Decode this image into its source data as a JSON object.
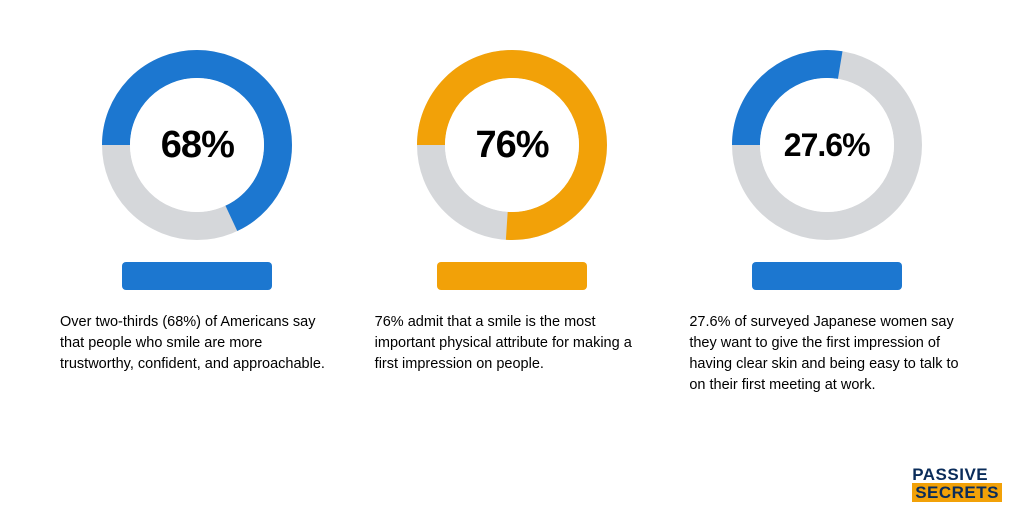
{
  "background_color": "#ffffff",
  "donut": {
    "size": 190,
    "stroke_width": 28,
    "track_color": "#d5d7da",
    "inner_fill": "#ffffff"
  },
  "stats": [
    {
      "percent": 68,
      "label": "68%",
      "label_fontsize": 38,
      "accent_color": "#1c77d0",
      "bar_color": "#1c77d0",
      "description": "Over two-thirds (68%) of Americans say that people who smile are more trustworthy, confident, and approachable."
    },
    {
      "percent": 76,
      "label": "76%",
      "label_fontsize": 38,
      "accent_color": "#f2a108",
      "bar_color": "#f2a108",
      "description": "76% admit that a smile is the most important physical attribute for making a first impression on people."
    },
    {
      "percent": 27.6,
      "label": "27.6%",
      "label_fontsize": 32,
      "accent_color": "#1c77d0",
      "bar_color": "#1c77d0",
      "description": "27.6% of surveyed Japanese women say they want to give the first impression of having clear skin and being easy to talk to on their first meeting at work."
    }
  ],
  "logo": {
    "top_text": "PASSIVE",
    "top_color": "#0a2c5a",
    "bottom_text": "SECRETS",
    "bottom_bg": "#f2a108",
    "bottom_color": "#0a2c5a"
  }
}
